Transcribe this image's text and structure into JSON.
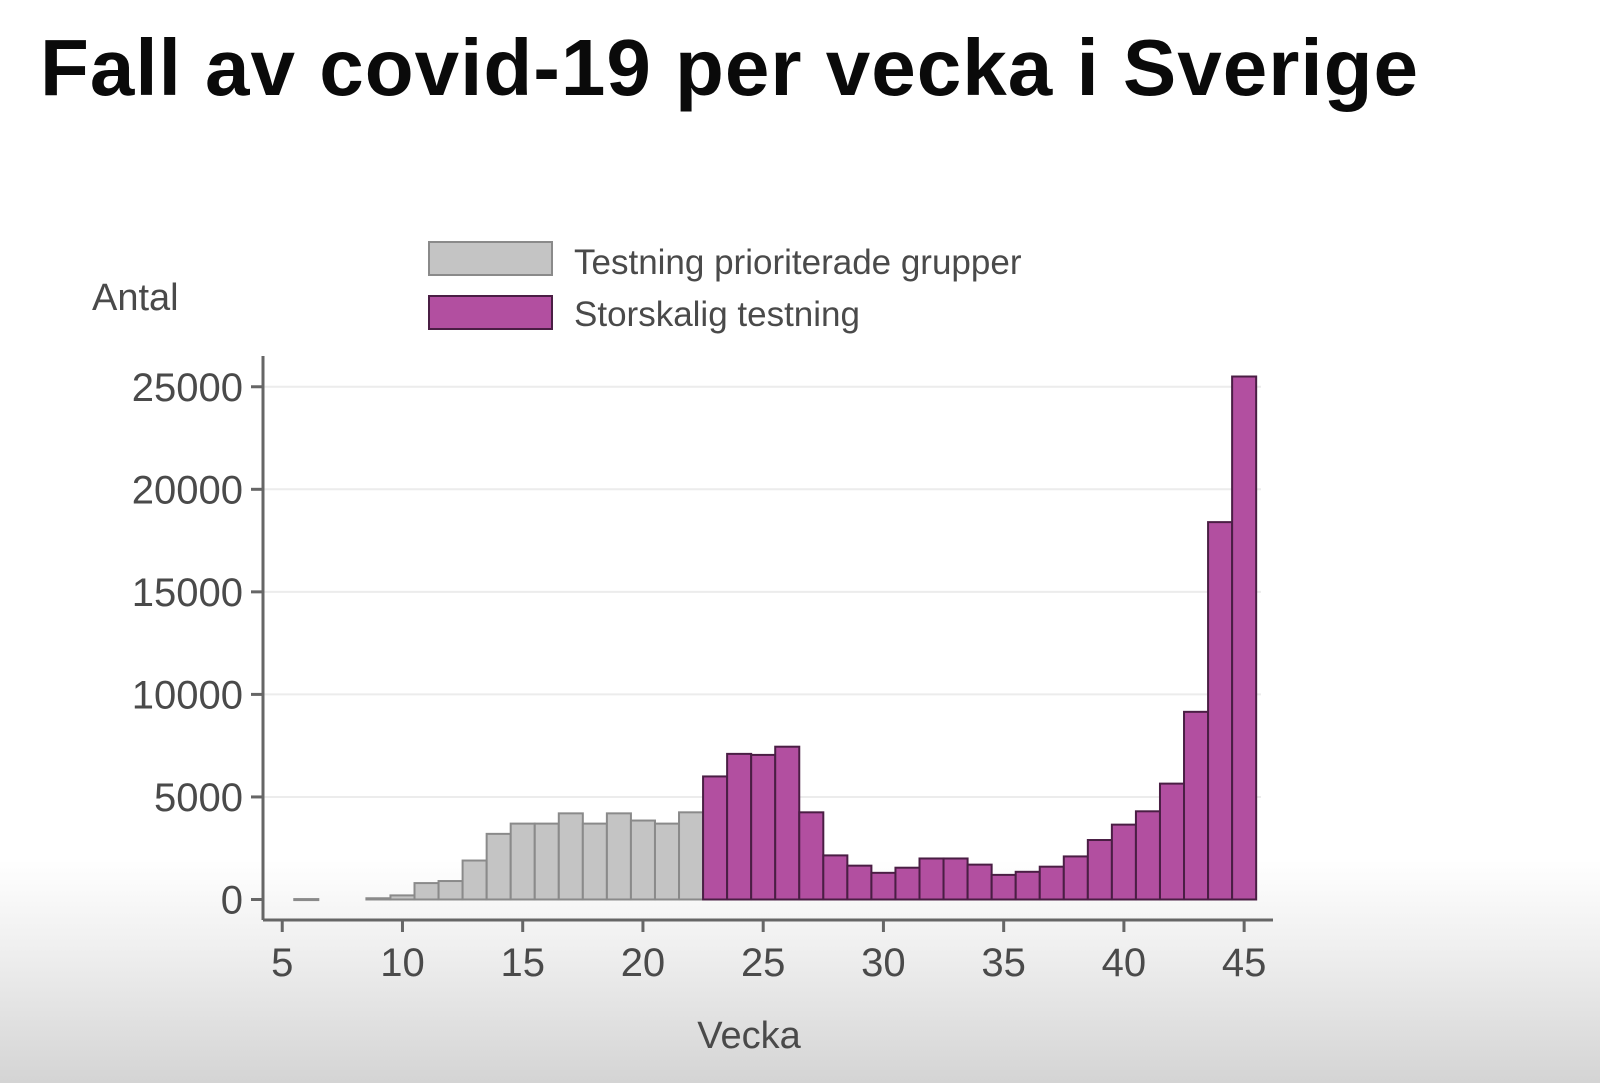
{
  "title": "Fall av covid-19 per vecka i Sverige",
  "colors": {
    "gray_fill": "#c4c4c4",
    "gray_stroke": "#8a8a8a",
    "purple_fill": "#b24fa0",
    "purple_stroke": "#4a1e44",
    "axis": "#666666",
    "grid": "#ececec"
  },
  "chart_data": {
    "type": "bar",
    "xlabel": "Vecka",
    "ylabel": "Antal",
    "xlim": [
      4.2,
      46.2
    ],
    "ylim": [
      -1000,
      26500
    ],
    "x_ticks": [
      5,
      10,
      15,
      20,
      25,
      30,
      35,
      40,
      45
    ],
    "x_tick_labels": [
      "5",
      "10",
      "15",
      "20",
      "25",
      "30",
      "35",
      "40",
      "45"
    ],
    "y_ticks": [
      0,
      5000,
      10000,
      15000,
      20000,
      25000
    ],
    "y_tick_labels": [
      "0",
      "5000",
      "10000",
      "15000",
      "20000",
      "25000"
    ],
    "grid": true,
    "legend_position": "top",
    "series": [
      {
        "name": "Testning prioriterade grupper",
        "color": "#c4c4c4",
        "x": [
          6,
          9,
          10,
          11,
          12,
          13,
          14,
          15,
          16,
          17,
          18,
          19,
          20,
          21,
          22
        ],
        "values": [
          20,
          60,
          200,
          800,
          900,
          1900,
          3200,
          3700,
          3700,
          4200,
          3700,
          4200,
          3850,
          3700,
          4250
        ]
      },
      {
        "name": "Storskalig testning",
        "color": "#b24fa0",
        "x": [
          23,
          24,
          25,
          26,
          27,
          28,
          29,
          30,
          31,
          32,
          33,
          34,
          35,
          36,
          37,
          38,
          39,
          40,
          41,
          42,
          43,
          44,
          45
        ],
        "values": [
          6000,
          7100,
          7050,
          7450,
          4250,
          2150,
          1650,
          1300,
          1550,
          2000,
          2000,
          1700,
          1200,
          1350,
          1600,
          2100,
          2900,
          3650,
          4300,
          5650,
          9150,
          18400,
          25500
        ]
      }
    ]
  }
}
